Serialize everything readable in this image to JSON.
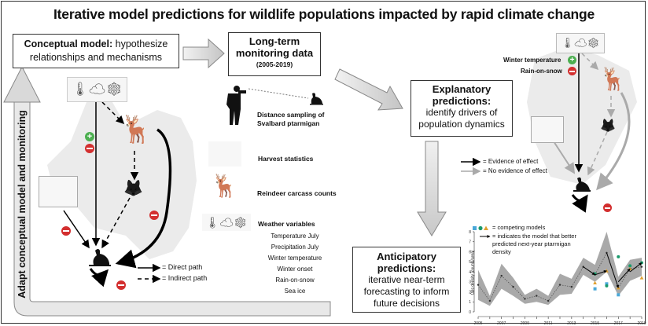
{
  "title": "Iterative model predictions for wildlife populations impacted by rapid climate change",
  "conceptual_model": {
    "bold": "Conceptual model:",
    "rest1": "hypothesize",
    "rest2": "relationships and mechanisms",
    "legend": {
      "direct": "= Direct path",
      "indirect": "= Indirect path"
    }
  },
  "feedback_arrow_label": "Adapt conceptual model and monitoring",
  "monitoring": {
    "line1": "Long-term",
    "line2": "monitoring data",
    "years": "(2005-2019)",
    "items": [
      {
        "label1": "Distance sampling of",
        "label2": "Svalbard ptarmigan",
        "icon": "hiker-binoculars-icon"
      },
      {
        "label1": "Harvest statistics",
        "icon": "hunter-sketch-icon"
      },
      {
        "label1": "Reindeer carcass counts",
        "icon": "reindeer-icon"
      },
      {
        "label1": "Weather variables",
        "icon": "weather-icons"
      }
    ],
    "weather_variables": [
      "Temperature July",
      "Precipitation July",
      "Winter temperature",
      "Winter onset",
      "Rain-on-snow",
      "Sea ice"
    ]
  },
  "explanatory": {
    "line1": "Explanatory",
    "line2": "predictions:",
    "line3": "identify drivers of",
    "line4": "population dynamics",
    "effects": {
      "winter_temp": "Winter temperature",
      "rain_on_snow": "Rain-on-snow"
    },
    "legend": {
      "evidence": "= Evidence of effect",
      "no_evidence": "= No evidence of effect"
    }
  },
  "anticipatory": {
    "line1": "Anticipatory",
    "line2": "predictions:",
    "line3": "iterative near-term",
    "line4": "forecasting to inform",
    "line5": "future decisions"
  },
  "colors": {
    "plus": "#4caf50",
    "minus": "#d32f2f",
    "arrow_gray": "#c8c8c8",
    "model_blue": "#4aa8d8",
    "model_green": "#1a9a6c",
    "model_orange": "#e0a030"
  },
  "chart_data": {
    "type": "line",
    "title": "",
    "xlabel": "",
    "ylabel": "Obs density [counts/area]",
    "x": [
      2005,
      2006,
      2007,
      2008,
      2009,
      2010,
      2011,
      2012,
      2013,
      2014,
      2015,
      2016,
      2017,
      2018,
      2019
    ],
    "xticks": [
      2005,
      2007,
      2009,
      2011,
      2013,
      2015,
      2017,
      2019
    ],
    "yticks": [
      0,
      1,
      2,
      3,
      4,
      5,
      6,
      7,
      8
    ],
    "ylim": [
      0,
      8
    ],
    "legend": [
      "= competing models",
      "= indicates the model that better predicted next-year ptarmigan density"
    ],
    "series": [
      {
        "name": "Observed density",
        "values": [
          2.7,
          1.1,
          3.6,
          2.5,
          1.3,
          1.6,
          1.1,
          2.7,
          2.5,
          4.5,
          3.7,
          5.9,
          2.4,
          4.3,
          4.5
        ]
      },
      {
        "name": "Upper CI",
        "values": [
          4.2,
          1.6,
          4.8,
          3.4,
          1.7,
          2.3,
          1.6,
          3.8,
          3.3,
          5.4,
          4.7,
          8.0,
          3.5,
          5.2,
          5.4
        ]
      },
      {
        "name": "Lower CI",
        "values": [
          1.2,
          0.6,
          2.3,
          1.6,
          0.8,
          1.0,
          0.7,
          1.7,
          1.8,
          3.7,
          3.0,
          4.0,
          1.6,
          3.1,
          3.6
        ]
      },
      {
        "name": "Model blue (square)",
        "x": [
          2015,
          2016,
          2017
        ],
        "values": [
          2.3,
          2.8,
          1.7
        ]
      },
      {
        "name": "Model green (circle)",
        "x": [
          2015,
          2016,
          2017,
          2018,
          2019
        ],
        "values": [
          3.8,
          2.6,
          5.5,
          4.6,
          4.9
        ]
      },
      {
        "name": "Model orange (triangle)",
        "x": [
          2015,
          2016,
          2017,
          2018,
          2019
        ],
        "values": [
          2.9,
          4.1,
          2.4,
          4.3,
          3.4
        ]
      }
    ]
  }
}
